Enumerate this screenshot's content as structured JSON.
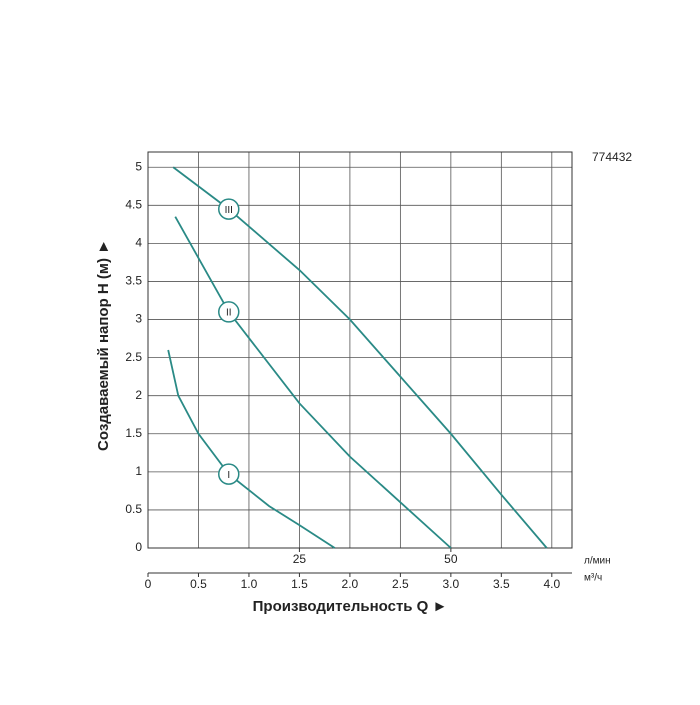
{
  "chart_data": {
    "type": "line",
    "code": "774432",
    "x_label": "Производительность Q ►",
    "y_label": "Создаваемый напор Н (м) ►",
    "x_unit": "м³/ч",
    "x2_unit": "л/мин",
    "xlim": [
      0,
      4.2
    ],
    "ylim": [
      0,
      5.2
    ],
    "x2lim": [
      0,
      70
    ],
    "xticks": [
      0,
      0.5,
      {
        "value": 1,
        "label": "1.0"
      },
      1.5,
      {
        "value": 2,
        "label": "2.0"
      },
      2.5,
      {
        "value": 3,
        "label": "3.0"
      },
      3.5,
      {
        "value": 4,
        "label": "4.0"
      }
    ],
    "yticks": [
      0,
      0.5,
      1,
      1.5,
      2,
      2.5,
      3,
      3.5,
      4,
      4.5,
      5
    ],
    "x2ticks": [
      25,
      50
    ],
    "grid": true,
    "series": [
      {
        "name": "III",
        "color": "#2a8a86",
        "label_x": 0.8,
        "label_y": 4.45,
        "x": [
          0.25,
          0.8,
          1.5,
          2.0,
          2.5,
          3.0,
          3.5,
          3.95
        ],
        "values": [
          5.0,
          4.45,
          3.65,
          3.0,
          2.25,
          1.5,
          0.7,
          0
        ]
      },
      {
        "name": "II",
        "color": "#2a8a86",
        "label_x": 0.8,
        "label_y": 3.1,
        "x": [
          0.27,
          0.8,
          1.5,
          2.0,
          2.5,
          3.0
        ],
        "values": [
          4.35,
          3.1,
          1.9,
          1.2,
          0.6,
          0
        ]
      },
      {
        "name": "I",
        "color": "#2a8a86",
        "label_x": 0.8,
        "label_y": 0.97,
        "x": [
          0.2,
          0.3,
          0.5,
          0.8,
          1.2,
          1.5,
          1.85
        ],
        "values": [
          2.6,
          2.0,
          1.5,
          0.97,
          0.55,
          0.3,
          0
        ]
      }
    ]
  }
}
